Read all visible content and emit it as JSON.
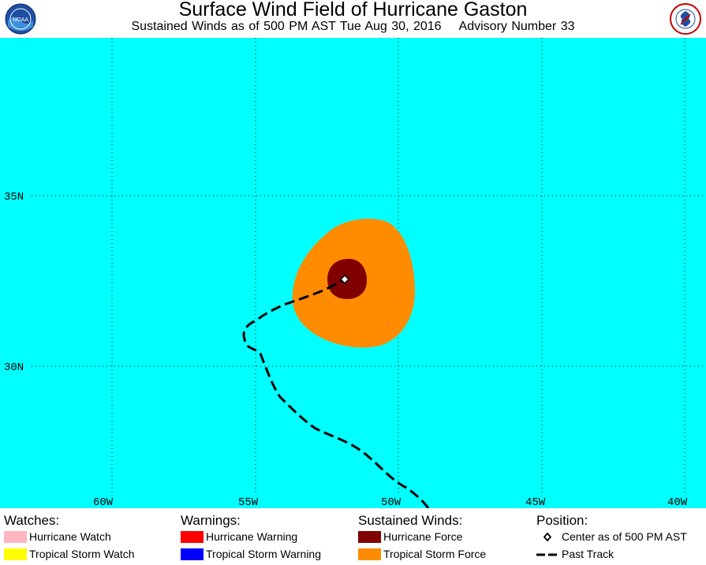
{
  "header": {
    "title": "Surface Wind Field of Hurricane Gaston",
    "subtitle_time": "Sustained Winds as of 500 PM AST Tue Aug 30, 2016",
    "subtitle_advisory": "Advisory Number 33",
    "logo_left_text": "NOAA",
    "logo_right_text": "NATIONAL WEATHER SERVICE"
  },
  "map": {
    "ocean_color": "#00ffff",
    "lat_labels": [
      "35N",
      "30N"
    ],
    "lon_labels": [
      "60W",
      "55W",
      "50W",
      "45W",
      "40W"
    ],
    "center": {
      "lat": 32.6,
      "lon": 51.8
    },
    "colors": {
      "hurricane_force": "#800000",
      "tropical_storm_force": "#ff8c00",
      "track": "#000000"
    }
  },
  "legend": {
    "watches": {
      "heading": "Watches:",
      "items": [
        {
          "label": "Hurricane Watch",
          "color": "#ffb6c1"
        },
        {
          "label": "Tropical Storm Watch",
          "color": "#ffff00"
        }
      ]
    },
    "warnings": {
      "heading": "Warnings:",
      "items": [
        {
          "label": "Hurricane Warning",
          "color": "#ff0000"
        },
        {
          "label": "Tropical Storm Warning",
          "color": "#0000ff"
        }
      ]
    },
    "winds": {
      "heading": "Sustained Winds:",
      "items": [
        {
          "label": "Hurricane Force",
          "color": "#800000"
        },
        {
          "label": "Tropical Storm Force",
          "color": "#ff8c00"
        }
      ]
    },
    "position": {
      "heading": "Position:",
      "center_label": "Center as of 500 PM AST",
      "track_label": "Past Track"
    }
  }
}
